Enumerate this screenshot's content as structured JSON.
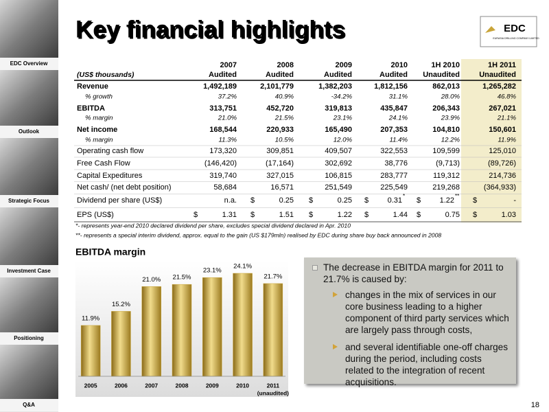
{
  "sidebar": {
    "items": [
      "EDC Overview",
      "Outlook",
      "Strategic Focus",
      "Investment Case",
      "Positioning",
      "Q&A"
    ]
  },
  "header": {
    "title": "Key financial highlights",
    "logo_mark": "EDC",
    "logo_name": "EURASIA DRILLING COMPANY LIMITED"
  },
  "table": {
    "unit_label": "(US$ thousands)",
    "columns": [
      {
        "year": "2007",
        "status": "Audited"
      },
      {
        "year": "2008",
        "status": "Audited"
      },
      {
        "year": "2009",
        "status": "Audited"
      },
      {
        "year": "2010",
        "status": "Audited"
      },
      {
        "year": "1H 2010",
        "status": "Unaudited"
      },
      {
        "year": "1H 2011",
        "status": "Unaudited"
      }
    ],
    "rows": [
      {
        "label": "Revenue",
        "style": "bold",
        "cells": [
          {
            "text": "1,492,189"
          },
          {
            "text": "2,101,779"
          },
          {
            "text": "1,382,203"
          },
          {
            "text": "1,812,156"
          },
          {
            "text": "862,013"
          },
          {
            "text": "1,265,282"
          }
        ]
      },
      {
        "label": "% growth",
        "style": "italic",
        "cells": [
          {
            "text": "37.2%"
          },
          {
            "text": "40.9%"
          },
          {
            "text": "-34.2%"
          },
          {
            "text": "31.1%"
          },
          {
            "text": "28.0%"
          },
          {
            "text": "46.8%"
          }
        ]
      },
      {
        "label": "EBITDA",
        "style": "bold",
        "cells": [
          {
            "text": "313,751"
          },
          {
            "text": "452,720"
          },
          {
            "text": "319,813"
          },
          {
            "text": "435,847"
          },
          {
            "text": "206,343"
          },
          {
            "text": "267,021"
          }
        ]
      },
      {
        "label": "% margin",
        "style": "italic",
        "cells": [
          {
            "text": "21.0%"
          },
          {
            "text": "21.5%"
          },
          {
            "text": "23.1%"
          },
          {
            "text": "24.1%"
          },
          {
            "text": "23.9%"
          },
          {
            "text": "21.1%"
          }
        ]
      },
      {
        "label": "Net income",
        "style": "bold",
        "cells": [
          {
            "text": "168,544"
          },
          {
            "text": "220,933"
          },
          {
            "text": "165,490"
          },
          {
            "text": "207,353"
          },
          {
            "text": "104,810"
          },
          {
            "text": "150,601"
          }
        ]
      },
      {
        "label": "% margin",
        "style": "italic",
        "cells": [
          {
            "text": "11.3%"
          },
          {
            "text": "10.5%"
          },
          {
            "text": "12.0%"
          },
          {
            "text": "11.4%"
          },
          {
            "text": "12.2%"
          },
          {
            "text": "11.9%"
          }
        ]
      },
      {
        "label": "Operating cash flow",
        "style": "regular",
        "cells": [
          {
            "text": "173,320"
          },
          {
            "text": "309,851"
          },
          {
            "text": "409,507"
          },
          {
            "text": "322,553"
          },
          {
            "text": "109,599"
          },
          {
            "text": "125,010"
          }
        ]
      },
      {
        "label": "Free Cash Flow",
        "style": "regular",
        "cells": [
          {
            "text": "(146,420)"
          },
          {
            "text": "(17,164)"
          },
          {
            "text": "302,692"
          },
          {
            "text": "38,776"
          },
          {
            "text": "(9,713)"
          },
          {
            "text": "(89,726)"
          }
        ]
      },
      {
        "label": "Capital Expeditures",
        "style": "regular",
        "cells": [
          {
            "text": "319,740"
          },
          {
            "text": "327,015"
          },
          {
            "text": "106,815"
          },
          {
            "text": "283,777"
          },
          {
            "text": "119,312"
          },
          {
            "text": "214,736"
          }
        ]
      },
      {
        "label": "Net cash/ (net debt position)",
        "style": "regular",
        "cells": [
          {
            "text": "58,684"
          },
          {
            "text": "16,571"
          },
          {
            "text": "251,549"
          },
          {
            "text": "225,549"
          },
          {
            "text": "219,268"
          },
          {
            "text": "(364,933)"
          }
        ]
      },
      {
        "label": "Dividend per share (US$)",
        "style": "regular",
        "cells": [
          {
            "text": "n.a."
          },
          {
            "text": "0.25",
            "prefix": "$"
          },
          {
            "text": "0.25",
            "prefix": "$"
          },
          {
            "text": "0.31",
            "prefix": "$",
            "note": "*"
          },
          {
            "text": "1.22",
            "prefix": "$",
            "note": "**"
          },
          {
            "text": "-",
            "prefix": "$"
          }
        ]
      },
      {
        "label": "EPS (US$)",
        "style": "regular",
        "cells": [
          {
            "text": "1.31",
            "prefix": "$"
          },
          {
            "text": "1.51",
            "prefix": "$"
          },
          {
            "text": "1.22",
            "prefix": "$"
          },
          {
            "text": "1.44",
            "prefix": "$"
          },
          {
            "text": "0.75",
            "prefix": "$"
          },
          {
            "text": "1.03",
            "prefix": "$"
          }
        ]
      }
    ],
    "footnotes": [
      "*- represents year-end 2010 declared dividend per share, excludes special dividend declared in Apr. 2010",
      "**- represents a special  interim dividend, approx. equal to the gain (US $179mln) realised by EDC during share buy back announced in 2008"
    ]
  },
  "chart_data": {
    "type": "bar",
    "title": "EBITDA margin",
    "categories": [
      "2005",
      "2006",
      "2007",
      "2008",
      "2009",
      "2010",
      "2011"
    ],
    "category_notes": [
      null,
      null,
      null,
      null,
      null,
      null,
      "(unaudited)"
    ],
    "values": [
      11.9,
      15.2,
      21.0,
      21.5,
      23.1,
      24.1,
      21.7
    ],
    "value_labels": [
      "11.9%",
      "15.2%",
      "21.0%",
      "21.5%",
      "23.1%",
      "24.1%",
      "21.7%"
    ],
    "color": "#c9a53a"
  },
  "callout": {
    "text": "The decrease in EBITDA margin for 2011 to 21.7% is caused by:",
    "items": [
      "changes in the mix of services in our core business leading to a higher component of third party services which are largely pass through costs,",
      "and several identifiable one-off charges during the period, including costs related to the integration of recent acquisitions."
    ]
  },
  "page_number": "18"
}
